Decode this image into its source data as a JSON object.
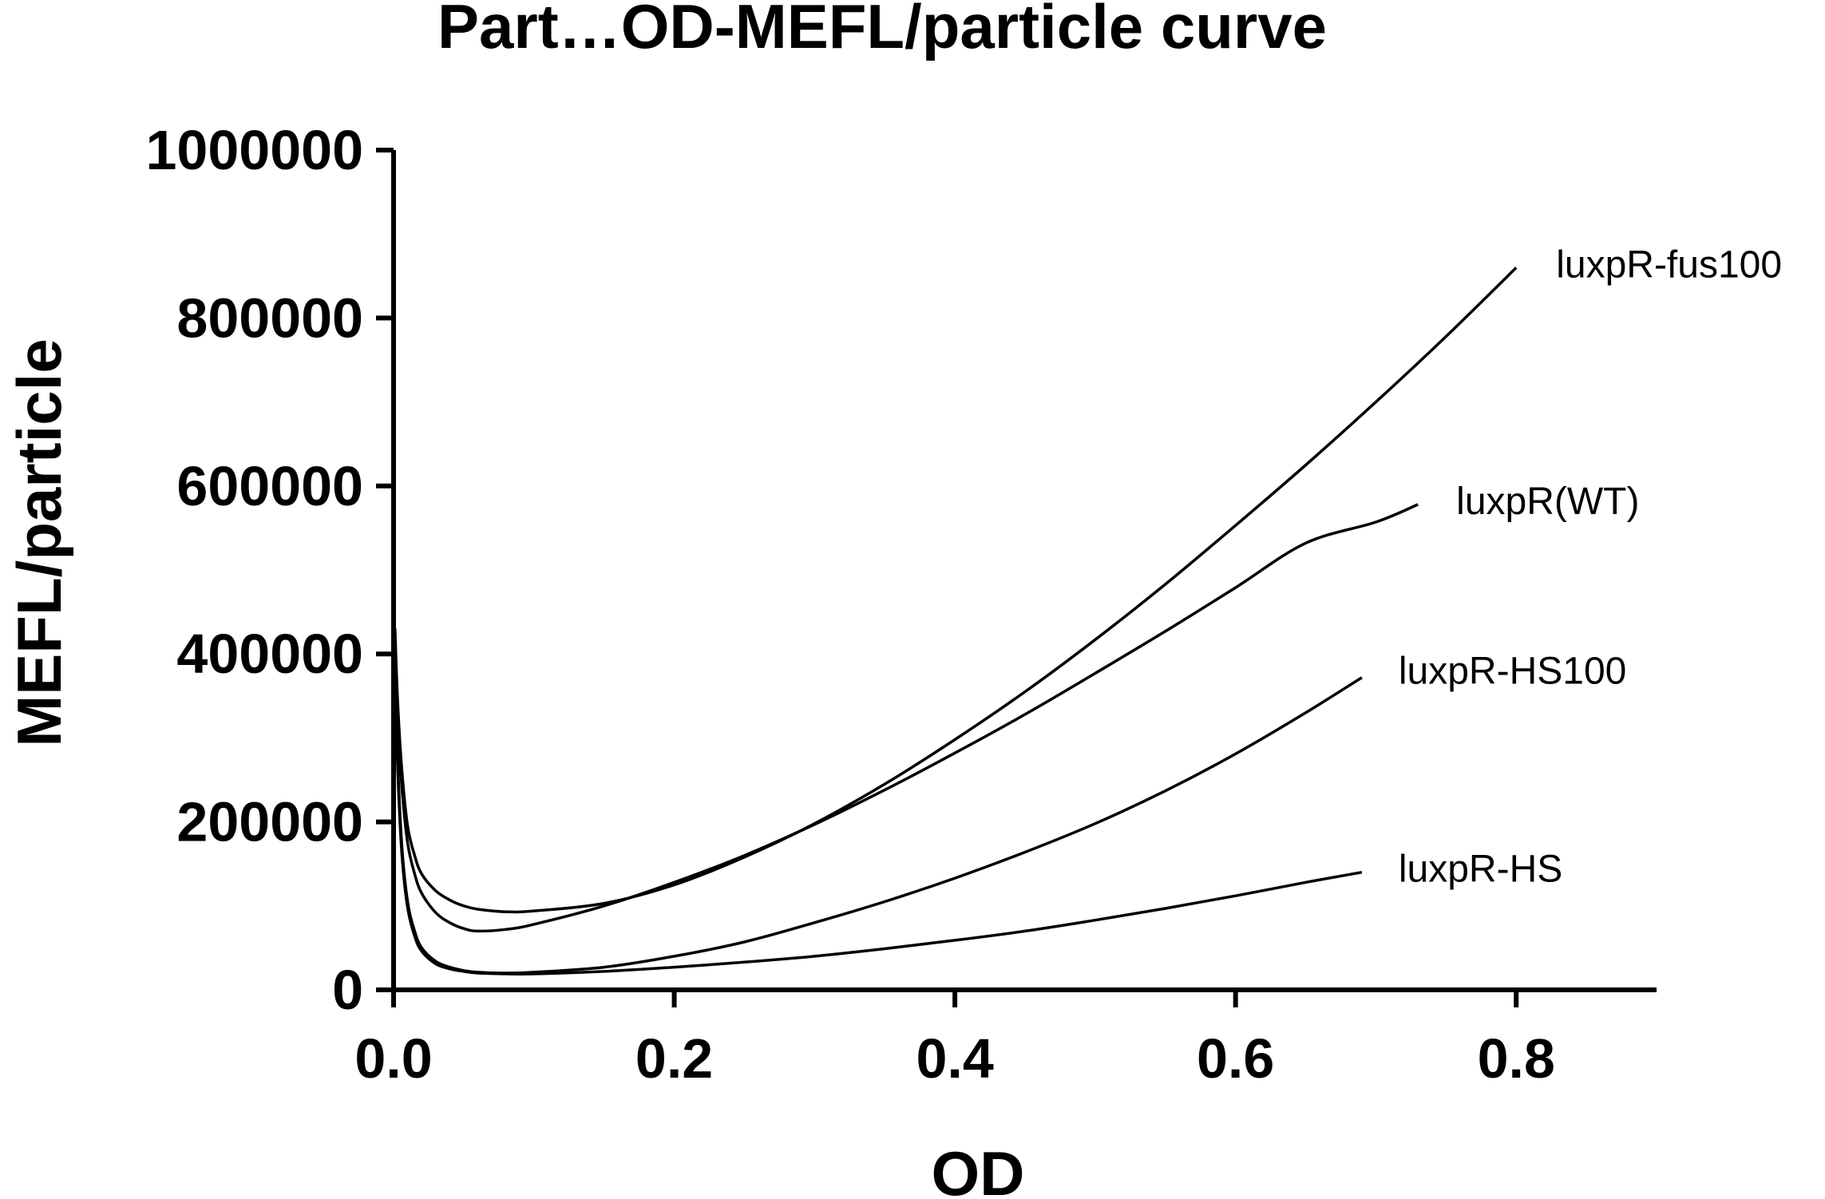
{
  "chart_data": {
    "type": "line",
    "title": "Part…OD-MEFL/particle curve",
    "xlabel": "OD",
    "ylabel": "MEFL/particle",
    "xlim": [
      0,
      0.9
    ],
    "ylim": [
      0,
      1000000
    ],
    "x_ticks": [
      "0.0",
      "0.2",
      "0.4",
      "0.6",
      "0.8"
    ],
    "y_ticks": [
      "0",
      "200000",
      "400000",
      "600000",
      "800000",
      "1000000"
    ],
    "grid": false,
    "legend": "labels at line ends",
    "series": [
      {
        "name": "luxpR-fus100",
        "x": [
          0.001,
          0.003,
          0.006,
          0.01,
          0.015,
          0.02,
          0.03,
          0.04,
          0.05,
          0.06,
          0.08,
          0.1,
          0.15,
          0.2,
          0.25,
          0.3,
          0.35,
          0.4,
          0.45,
          0.5,
          0.55,
          0.6,
          0.65,
          0.7,
          0.75,
          0.8
        ],
        "values": [
          430000,
          340000,
          260000,
          195000,
          160000,
          138000,
          118000,
          107000,
          100000,
          96000,
          93000,
          94000,
          103000,
          125000,
          158000,
          198000,
          245000,
          298000,
          355000,
          417000,
          483000,
          553000,
          625000,
          700000,
          778000,
          860000
        ]
      },
      {
        "name": "luxpR(WT)",
        "x": [
          0.001,
          0.003,
          0.006,
          0.01,
          0.015,
          0.02,
          0.03,
          0.04,
          0.05,
          0.06,
          0.08,
          0.1,
          0.15,
          0.2,
          0.25,
          0.3,
          0.35,
          0.4,
          0.45,
          0.5,
          0.55,
          0.6,
          0.65,
          0.7,
          0.73
        ],
        "values": [
          420000,
          320000,
          240000,
          175000,
          138000,
          115000,
          92000,
          80000,
          73000,
          70000,
          72000,
          78000,
          100000,
          128000,
          160000,
          197000,
          238000,
          282000,
          328000,
          377000,
          427000,
          479000,
          532000,
          557000,
          578000
        ]
      },
      {
        "name": "luxpR-HS100",
        "x": [
          0.001,
          0.003,
          0.006,
          0.01,
          0.015,
          0.02,
          0.03,
          0.04,
          0.05,
          0.06,
          0.08,
          0.1,
          0.15,
          0.2,
          0.25,
          0.3,
          0.35,
          0.4,
          0.45,
          0.5,
          0.55,
          0.6,
          0.65,
          0.69
        ],
        "values": [
          400000,
          270000,
          170000,
          105000,
          70000,
          50000,
          34000,
          27000,
          23000,
          21000,
          20000,
          21000,
          27000,
          40000,
          57000,
          80000,
          105000,
          133000,
          164000,
          198000,
          237000,
          281000,
          330000,
          372000
        ]
      },
      {
        "name": "luxpR-HS",
        "x": [
          0.001,
          0.003,
          0.006,
          0.01,
          0.015,
          0.02,
          0.03,
          0.04,
          0.05,
          0.06,
          0.08,
          0.1,
          0.15,
          0.2,
          0.25,
          0.3,
          0.35,
          0.4,
          0.45,
          0.5,
          0.55,
          0.6,
          0.65,
          0.69
        ],
        "values": [
          390000,
          260000,
          160000,
          98000,
          64000,
          46000,
          31000,
          25000,
          22000,
          20000,
          19000,
          19000,
          22000,
          27000,
          33000,
          40000,
          49000,
          59000,
          70000,
          83000,
          97000,
          112000,
          128000,
          140000
        ]
      }
    ]
  }
}
